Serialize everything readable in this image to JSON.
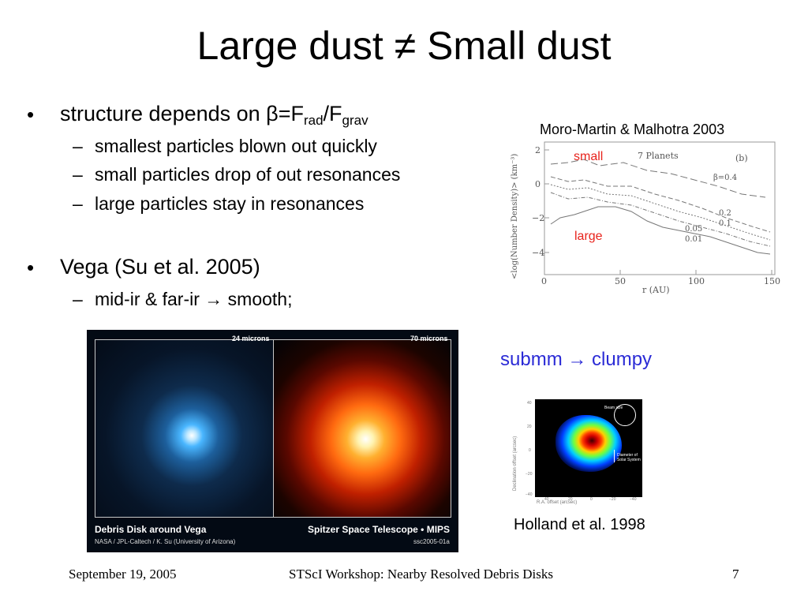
{
  "slide": {
    "title": "Large dust ≠ Small dust",
    "bullets": [
      {
        "text_pre": "structure depends on ",
        "beta": "β",
        "eq": "=F",
        "sub1": "rad",
        "slash": "/F",
        "sub2": "grav",
        "subs": [
          "smallest particles blown out quickly",
          "small particles drop of out resonances",
          "large particles stay in resonances"
        ]
      },
      {
        "text": "Vega (Su et al. 2005)",
        "subs": [
          "mid-ir & far-ir → smooth;"
        ]
      }
    ],
    "dash": "–",
    "dot": "•",
    "submm_caption": "submm → clumpy",
    "holland_caption": "Holland et al. 1998",
    "footer": {
      "date": "September 19, 2005",
      "center": "STScI Workshop: Nearby Resolved Debris Disks",
      "page": "7"
    }
  },
  "plot_figure": {
    "credit": "Moro-Martin & Malhotra 2003",
    "inner_title": "7 Planets",
    "panel": "(b)",
    "small_label": "small",
    "large_label": "large",
    "beta_label": "β=0.4",
    "curve_labels": [
      "0.2",
      "0.1",
      "0.05",
      "0.01"
    ],
    "ylabel": "<log(Number Density)> (km⁻³)",
    "xlabel": "r (AU)",
    "yticks": [
      "2",
      "0",
      "−2",
      "−4"
    ],
    "xticks": [
      "0",
      "50",
      "100",
      "150"
    ]
  },
  "vega_image": {
    "label_left": "24 microns",
    "label_right": "70 microns",
    "caption_left": "Debris Disk around Vega",
    "credit_left": "NASA / JPL-Caltech / K. Su (University of Arizona)",
    "caption_right": "Spitzer Space Telescope • MIPS",
    "credit_right": "ssc2005-01a"
  },
  "holland_image": {
    "beam_label": "Beam size",
    "scale_label": "Diameter of Solar System",
    "ylabel": "Declination offset (arcsec)",
    "xlabel": "R.A. offset (arcsec)",
    "xticks": [
      "40",
      "20",
      "0",
      "−20",
      "−40"
    ],
    "yticks": [
      "40",
      "20",
      "0",
      "−20",
      "−40"
    ]
  },
  "colors": {
    "blue_text": "#2b2bd6",
    "red_label": "#e8231c",
    "vega_bg": "#030a14"
  }
}
